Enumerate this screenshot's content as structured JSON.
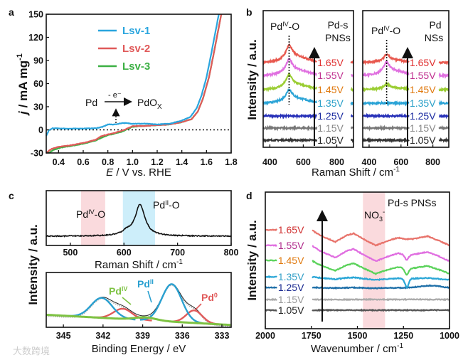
{
  "panel_letters": {
    "a": "a",
    "b": "b",
    "c": "c",
    "d": "d"
  },
  "watermark": "大数跨境",
  "chart_data": [
    {
      "id": "a",
      "type": "line",
      "xlabel_italic": "E",
      "xlabel_rest": " / V vs. RHE",
      "ylabel_italic": "j",
      "ylabel_rest": " / mA mg",
      "ylabel_sup": "-1",
      "xlim": [
        0.3,
        1.8
      ],
      "ylim": [
        -30,
        150
      ],
      "xticks": [
        "0.4",
        "0.6",
        "0.8",
        "1.0",
        "1.2",
        "1.4",
        "1.6",
        "1.8"
      ],
      "yticks": [
        "-30",
        "0",
        "30",
        "60",
        "90",
        "120",
        "150"
      ],
      "annotation": {
        "left": "Pd",
        "above": "- e⁻",
        "right": "PdO",
        "right_sub": "X"
      },
      "series": [
        {
          "name": "Lsv-1",
          "color": "#2aa5de",
          "points": [
            [
              0.3,
              -8
            ],
            [
              0.32,
              -1
            ],
            [
              0.35,
              2
            ],
            [
              0.5,
              1.5
            ],
            [
              0.7,
              2
            ],
            [
              0.76,
              4
            ],
            [
              0.8,
              7
            ],
            [
              0.86,
              7
            ],
            [
              0.92,
              9
            ],
            [
              1.0,
              8
            ],
            [
              1.1,
              8
            ],
            [
              1.2,
              7
            ],
            [
              1.3,
              8
            ],
            [
              1.4,
              12
            ],
            [
              1.47,
              17
            ],
            [
              1.52,
              28
            ],
            [
              1.56,
              45
            ],
            [
              1.6,
              68
            ],
            [
              1.64,
              100
            ],
            [
              1.67,
              125
            ],
            [
              1.7,
              150
            ]
          ]
        },
        {
          "name": "Lsv-2",
          "color": "#e05a5a",
          "points": [
            [
              0.3,
              -30
            ],
            [
              0.34,
              -25
            ],
            [
              0.4,
              -22
            ],
            [
              0.5,
              -20
            ],
            [
              0.6,
              -17
            ],
            [
              0.7,
              -13
            ],
            [
              0.75,
              -8
            ],
            [
              0.8,
              -6
            ],
            [
              0.85,
              -4
            ],
            [
              0.92,
              -1
            ],
            [
              0.96,
              2
            ],
            [
              1.0,
              5
            ],
            [
              1.1,
              5
            ],
            [
              1.2,
              6
            ],
            [
              1.3,
              7
            ],
            [
              1.4,
              10
            ],
            [
              1.48,
              14
            ],
            [
              1.53,
              24
            ],
            [
              1.57,
              40
            ],
            [
              1.62,
              68
            ],
            [
              1.66,
              100
            ],
            [
              1.69,
              125
            ],
            [
              1.72,
              150
            ]
          ]
        },
        {
          "name": "Lsv-3",
          "color": "#3cb044",
          "points": [
            [
              0.32,
              -30
            ],
            [
              0.36,
              -26
            ],
            [
              0.42,
              -23
            ],
            [
              0.5,
              -21
            ],
            [
              0.6,
              -18
            ],
            [
              0.7,
              -14
            ],
            [
              0.75,
              -10
            ],
            [
              0.8,
              -7
            ],
            [
              0.85,
              -5
            ],
            [
              0.92,
              -2
            ],
            [
              0.96,
              1
            ],
            [
              1.0,
              4
            ],
            [
              1.1,
              5
            ],
            [
              1.2,
              6
            ],
            [
              1.3,
              7
            ],
            [
              1.4,
              10
            ],
            [
              1.48,
              14
            ],
            [
              1.53,
              24
            ],
            [
              1.57,
              40
            ],
            [
              1.62,
              68
            ],
            [
              1.66,
              100
            ],
            [
              1.69,
              125
            ],
            [
              1.72,
              150
            ]
          ]
        }
      ]
    },
    {
      "id": "b-left",
      "type": "line",
      "title_line1": "Pd-s",
      "title_line2": "PNSs",
      "peak_label": {
        "base": "Pd",
        "sup": "IV",
        "tail": "-O"
      },
      "peak_position": 515,
      "xlim": [
        360,
        900
      ],
      "xticks": [
        "400",
        "600",
        "800"
      ],
      "xlabel": "Raman Shift / cm",
      "xlabel_sup": "-1",
      "ylabel": "Intensity / a.u.",
      "series": [
        {
          "name": "1.05V",
          "color": "#333333",
          "label_color": "#222222",
          "peak": 0
        },
        {
          "name": "1.15V",
          "color": "#777777",
          "label_color": "#888888",
          "peak": 0
        },
        {
          "name": "1.25V",
          "color": "#2630b8",
          "label_color": "#1a2aa0",
          "peak": 0
        },
        {
          "name": "1.35V",
          "color": "#29a3d6",
          "label_color": "#2aa0c8",
          "peak": 1.0
        },
        {
          "name": "1.45V",
          "color": "#9acd32",
          "label_color": "#e07a10",
          "peak": 1.1
        },
        {
          "name": "1.55V",
          "color": "#e070e0",
          "label_color": "#c03090",
          "peak": 1.2
        },
        {
          "name": "1.65V",
          "color": "#e8584e",
          "label_color": "#e03030",
          "peak": 1.3
        }
      ]
    },
    {
      "id": "b-right",
      "type": "line",
      "title_line1": "Pd",
      "title_line2": "NSs",
      "peak_label": {
        "base": "Pd",
        "sup": "IV",
        "tail": "-O"
      },
      "peak_position": 510,
      "xlim": [
        360,
        900
      ],
      "xticks": [
        "400",
        "600",
        "800"
      ],
      "series": [
        {
          "name": "1.05V",
          "color": "#333333",
          "label_color": "#222222",
          "peak": 0
        },
        {
          "name": "1.15V",
          "color": "#777777",
          "label_color": "#888888",
          "peak": 0
        },
        {
          "name": "1.25V",
          "color": "#2630b8",
          "label_color": "#1a2aa0",
          "peak": 0
        },
        {
          "name": "1.35V",
          "color": "#29a3d6",
          "label_color": "#2aa0c8",
          "peak": 0
        },
        {
          "name": "1.45V",
          "color": "#9acd32",
          "label_color": "#e07a10",
          "peak": 0.4
        },
        {
          "name": "1.55V",
          "color": "#e070e0",
          "label_color": "#c03090",
          "peak": 1.0
        },
        {
          "name": "1.65V",
          "color": "#e8584e",
          "label_color": "#e03030",
          "peak": 0.6
        }
      ]
    },
    {
      "id": "c-raman",
      "type": "line",
      "xlim": [
        455,
        800
      ],
      "xticks": [
        "500",
        "600",
        "700",
        "800"
      ],
      "xlabel": "Raman Shift / cm",
      "xlabel_sup": "-1",
      "bands": [
        {
          "label": {
            "base": "Pd",
            "sup": "IV",
            "tail": "-O"
          },
          "range": [
            520,
            565
          ],
          "color": "#fadadd"
        },
        {
          "label": {
            "base": "Pd",
            "sup": "II",
            "tail": "-O"
          },
          "range": [
            598,
            658
          ],
          "color": "#cdeefa"
        }
      ],
      "peaks": [
        {
          "center": 630,
          "width": 11,
          "height": 1.0
        },
        {
          "center": 605,
          "width": 10,
          "height": 0.12
        }
      ]
    },
    {
      "id": "c-xps",
      "type": "line",
      "xlim": [
        346.3,
        332.3
      ],
      "xticks": [
        "345",
        "342",
        "339",
        "336",
        "333"
      ],
      "xlabel": "Binding Energy / eV",
      "ylabel": "Intensity / a.u.",
      "background": [
        22,
        4
      ],
      "components": [
        {
          "label": {
            "base": "Pd",
            "sup": "II"
          },
          "color": "#2aa0d0",
          "peaks": [
            [
              342.1,
              35,
              0.8
            ],
            [
              336.8,
              66,
              0.75
            ]
          ]
        },
        {
          "label": {
            "base": "Pd",
            "sup": "IV"
          },
          "color": "#7dc242",
          "peaks": [
            [
              338.8,
              5,
              0.8
            ]
          ]
        },
        {
          "label": {
            "base": "Pd",
            "sup": "0"
          },
          "color": "#e05a5a",
          "peaks": [
            [
              340.5,
              18,
              0.7
            ],
            [
              335.1,
              22,
              0.6
            ]
          ]
        }
      ]
    },
    {
      "id": "d",
      "type": "line",
      "title": "Pd-s PNSs",
      "band": {
        "label": "NO",
        "label_sub": "3",
        "label_sup": "-",
        "range": [
          1470,
          1350
        ],
        "color": "#fadadd"
      },
      "xlim": [
        2000,
        1000
      ],
      "xticks": [
        "2000",
        "1750",
        "1500",
        "1250",
        "1000"
      ],
      "xlabel": "Wavenumber / cm",
      "xlabel_sup": "-1",
      "ylabel": "Intensity / a.u.",
      "profile": [
        [
          1750,
          0
        ],
        [
          1700,
          -8
        ],
        [
          1620,
          -17
        ],
        [
          1560,
          -8
        ],
        [
          1520,
          -5
        ],
        [
          1460,
          -14
        ],
        [
          1400,
          -22
        ],
        [
          1340,
          -16
        ],
        [
          1280,
          -11
        ],
        [
          1240,
          -13
        ],
        [
          1200,
          -13
        ],
        [
          1120,
          -9
        ],
        [
          1060,
          -15
        ],
        [
          1000,
          -22
        ]
      ],
      "series": [
        {
          "name": "1.05V",
          "color": "#555555",
          "label_color": "#222222",
          "scale": 0,
          "dip1230": 0
        },
        {
          "name": "1.15V",
          "color": "#aaaaaa",
          "label_color": "#999999",
          "scale": 0,
          "dip1230": 0
        },
        {
          "name": "1.25V",
          "color": "#1e6fa8",
          "label_color": "#1a2a90",
          "scale": 0.05,
          "dip1230": 0
        },
        {
          "name": "1.35V",
          "color": "#2aa6d6",
          "label_color": "#33a0c8",
          "scale": 0.2,
          "dip1230": 12
        },
        {
          "name": "1.45V",
          "color": "#5ad25a",
          "label_color": "#e07a10",
          "scale": 0.85,
          "dip1230": 9
        },
        {
          "name": "1.55V",
          "color": "#e06ee0",
          "label_color": "#b02c8c",
          "scale": 1.0,
          "dip1230": 7
        },
        {
          "name": "1.65V",
          "color": "#e8736b",
          "label_color": "#d03030",
          "scale": 1.0,
          "dip1230": 0
        }
      ]
    }
  ]
}
